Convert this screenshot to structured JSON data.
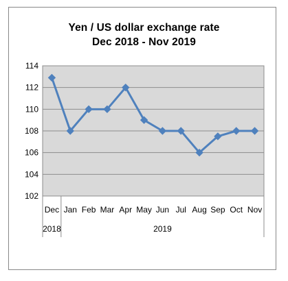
{
  "chart_data": {
    "type": "line",
    "title_line1": "Yen / US dollar exchange rate",
    "title_line2": "Dec 2018 -  Nov 2019",
    "categories": [
      "Dec",
      "Jan",
      "Feb",
      "Mar",
      "Apr",
      "May",
      "Jun",
      "Jul",
      "Aug",
      "Sep",
      "Oct",
      "Nov"
    ],
    "year_labels": [
      "2018",
      "2019"
    ],
    "series": [
      {
        "values": [
          112.9,
          108.0,
          110.0,
          110.0,
          112.0,
          109.0,
          108.0,
          108.0,
          106.0,
          107.5,
          108.0,
          108.0
        ]
      }
    ],
    "ylim": [
      102,
      114
    ],
    "yticks": [
      "102",
      "104",
      "106",
      "108",
      "110",
      "112",
      "114"
    ],
    "grid": true,
    "legend": "none",
    "line_color": "#4f81bd",
    "plot_bg": "#d9d9d9"
  }
}
